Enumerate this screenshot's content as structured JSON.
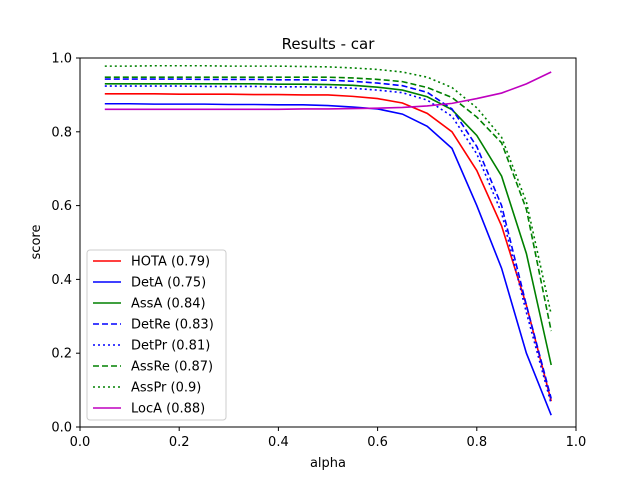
{
  "chart_data": {
    "type": "line",
    "title": "Results - car",
    "xlabel": "alpha",
    "ylabel": "score",
    "xlim": [
      0.0,
      1.0
    ],
    "ylim": [
      0.0,
      1.0
    ],
    "xticks": [
      "0.0",
      "0.2",
      "0.4",
      "0.6",
      "0.8",
      "1.0"
    ],
    "yticks": [
      "0.0",
      "0.2",
      "0.4",
      "0.6",
      "0.8",
      "1.0"
    ],
    "grid": false,
    "legend_position": "lower-left",
    "x": [
      0.05,
      0.1,
      0.15,
      0.2,
      0.25,
      0.3,
      0.35,
      0.4,
      0.45,
      0.5,
      0.55,
      0.6,
      0.65,
      0.7,
      0.75,
      0.8,
      0.85,
      0.9,
      0.95
    ],
    "series": [
      {
        "name": "HOTA (0.79)",
        "color": "#ff0000",
        "dash": "solid",
        "values": [
          0.903,
          0.903,
          0.903,
          0.902,
          0.902,
          0.902,
          0.901,
          0.901,
          0.9,
          0.9,
          0.896,
          0.89,
          0.878,
          0.85,
          0.8,
          0.695,
          0.545,
          0.33,
          0.07
        ]
      },
      {
        "name": "DetA (0.75)",
        "color": "#0000ff",
        "dash": "solid",
        "values": [
          0.876,
          0.876,
          0.875,
          0.875,
          0.875,
          0.874,
          0.874,
          0.873,
          0.873,
          0.871,
          0.867,
          0.862,
          0.848,
          0.815,
          0.755,
          0.6,
          0.43,
          0.2,
          0.032
        ]
      },
      {
        "name": "AssA (0.84)",
        "color": "#008000",
        "dash": "solid",
        "values": [
          0.93,
          0.93,
          0.93,
          0.93,
          0.93,
          0.93,
          0.93,
          0.929,
          0.929,
          0.928,
          0.926,
          0.921,
          0.913,
          0.895,
          0.86,
          0.79,
          0.68,
          0.47,
          0.168
        ]
      },
      {
        "name": "DetRe (0.83)",
        "color": "#0000ff",
        "dash": "dashed",
        "values": [
          0.943,
          0.943,
          0.943,
          0.943,
          0.942,
          0.942,
          0.942,
          0.941,
          0.941,
          0.94,
          0.937,
          0.932,
          0.925,
          0.907,
          0.862,
          0.76,
          0.6,
          0.33,
          0.077
        ]
      },
      {
        "name": "DetPr (0.81)",
        "color": "#0000ff",
        "dash": "dotted",
        "values": [
          0.924,
          0.924,
          0.924,
          0.924,
          0.923,
          0.923,
          0.923,
          0.922,
          0.922,
          0.921,
          0.918,
          0.913,
          0.906,
          0.886,
          0.842,
          0.74,
          0.58,
          0.31,
          0.062
        ]
      },
      {
        "name": "AssRe (0.87)",
        "color": "#008000",
        "dash": "dashed",
        "values": [
          0.948,
          0.948,
          0.948,
          0.948,
          0.948,
          0.948,
          0.948,
          0.948,
          0.948,
          0.948,
          0.946,
          0.942,
          0.936,
          0.92,
          0.893,
          0.84,
          0.77,
          0.59,
          0.26
        ]
      },
      {
        "name": "AssPr (0.9)",
        "color": "#008000",
        "dash": "dotted",
        "values": [
          0.978,
          0.978,
          0.979,
          0.979,
          0.979,
          0.978,
          0.978,
          0.978,
          0.977,
          0.976,
          0.973,
          0.969,
          0.962,
          0.948,
          0.92,
          0.865,
          0.785,
          0.61,
          0.305
        ]
      },
      {
        "name": "LocA (0.88)",
        "color": "#bf00bf",
        "dash": "solid",
        "values": [
          0.861,
          0.861,
          0.861,
          0.861,
          0.861,
          0.861,
          0.861,
          0.861,
          0.862,
          0.862,
          0.863,
          0.864,
          0.866,
          0.87,
          0.877,
          0.89,
          0.905,
          0.93,
          0.962
        ]
      }
    ]
  }
}
